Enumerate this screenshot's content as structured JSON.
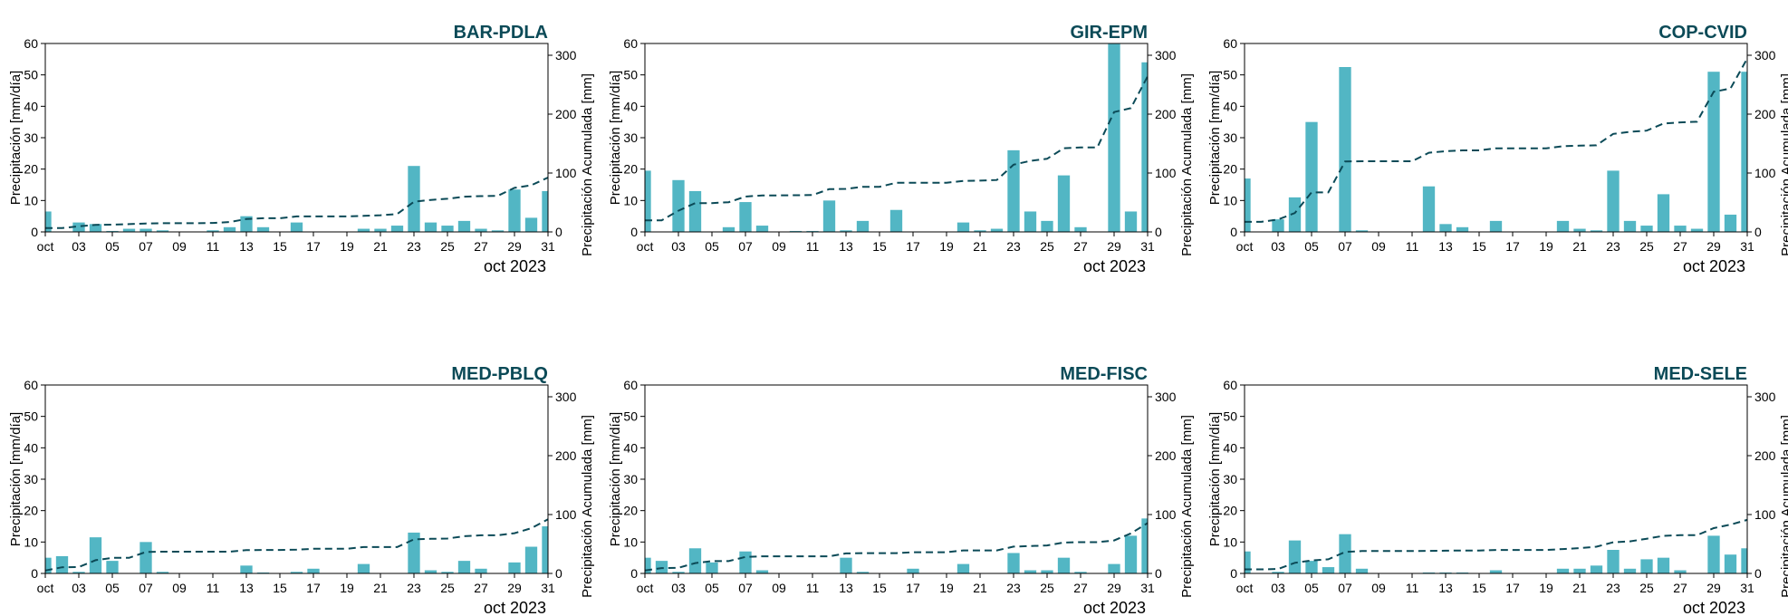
{
  "colors": {
    "bar": "#52b6c4",
    "cumulative_line": "#0b4a57",
    "title": "#0b4a57",
    "axis": "#000000"
  },
  "chart_data": [
    {
      "type": "bar",
      "title": "BAR-PDLA",
      "ylabel": "Precipitación [mm/día]",
      "y2label": "Precipitación Acumulada [mm]",
      "date_label": "oct 2023",
      "xticks": [
        "oct",
        "03",
        "05",
        "07",
        "09",
        "11",
        "13",
        "15",
        "17",
        "19",
        "21",
        "23",
        "25",
        "27",
        "29",
        "31"
      ],
      "ylim": [
        0,
        60
      ],
      "y2lim": [
        0,
        320
      ],
      "yticks": [
        0,
        10,
        20,
        30,
        40,
        50,
        60
      ],
      "y2ticks": [
        0,
        100,
        200,
        300
      ],
      "days": [
        1,
        2,
        3,
        4,
        5,
        6,
        7,
        8,
        9,
        10,
        11,
        12,
        13,
        14,
        15,
        16,
        17,
        18,
        19,
        20,
        21,
        22,
        23,
        24,
        25,
        26,
        27,
        28,
        29,
        30,
        31
      ],
      "series": [
        {
          "name": "",
          "kind": "bar",
          "values": [
            6.5,
            0,
            3,
            2.5,
            0.3,
            1,
            1,
            0.5,
            0,
            0,
            0.5,
            1.5,
            5,
            1.5,
            0,
            3,
            0,
            0,
            0,
            1,
            1,
            2,
            21,
            3,
            2,
            3.5,
            1,
            0.5,
            13.5,
            4.5,
            13
          ]
        },
        {
          "name": "",
          "kind": "cumulative",
          "axis": "right",
          "values": [
            6.5,
            6.5,
            9.5,
            12,
            12.3,
            13.3,
            14.3,
            14.8,
            14.8,
            14.8,
            15.3,
            16.8,
            21.8,
            23.3,
            23.3,
            26.3,
            26.3,
            26.3,
            26.3,
            27.3,
            28.3,
            30.3,
            51.3,
            54.3,
            56.3,
            59.8,
            60.8,
            61.3,
            74.8,
            79.3,
            92.3
          ]
        }
      ]
    },
    {
      "type": "bar",
      "title": "GIR-EPM",
      "ylabel": "Precipitación [mm/día]",
      "y2label": "Precipitación Acumulada [mm]",
      "date_label": "oct 2023",
      "xticks": [
        "oct",
        "03",
        "05",
        "07",
        "09",
        "11",
        "13",
        "15",
        "17",
        "19",
        "21",
        "23",
        "25",
        "27",
        "29",
        "31"
      ],
      "ylim": [
        0,
        60
      ],
      "y2lim": [
        0,
        320
      ],
      "yticks": [
        0,
        10,
        20,
        30,
        40,
        50,
        60
      ],
      "y2ticks": [
        0,
        100,
        200,
        300
      ],
      "days": [
        1,
        2,
        3,
        4,
        5,
        6,
        7,
        8,
        9,
        10,
        11,
        12,
        13,
        14,
        15,
        16,
        17,
        18,
        19,
        20,
        21,
        22,
        23,
        24,
        25,
        26,
        27,
        28,
        29,
        30,
        31
      ],
      "series": [
        {
          "name": "",
          "kind": "bar",
          "values": [
            19.5,
            0,
            16.5,
            13,
            0,
            1.5,
            9.5,
            2,
            0,
            0.3,
            0.3,
            10,
            0.5,
            3.5,
            0,
            7,
            0,
            0,
            0,
            3,
            0.5,
            1,
            26,
            6.5,
            3.5,
            18,
            1.5,
            0,
            60,
            6.5,
            54
          ]
        },
        {
          "name": "",
          "kind": "cumulative",
          "axis": "right",
          "values": [
            19.5,
            19.5,
            36,
            49,
            49,
            50.5,
            60,
            62,
            62,
            62.3,
            62.6,
            72.6,
            73.1,
            76.6,
            76.6,
            83.6,
            83.6,
            83.6,
            83.6,
            86.6,
            87.1,
            88.1,
            114.1,
            120.6,
            124.1,
            142.1,
            143.6,
            143.6,
            203.6,
            210.1,
            264.1
          ]
        }
      ]
    },
    {
      "type": "bar",
      "title": "COP-CVID",
      "ylabel": "Precipitación [mm/día]",
      "y2label": "Precipitación Acumulada [mm]",
      "date_label": "oct 2023",
      "xticks": [
        "oct",
        "03",
        "05",
        "07",
        "09",
        "11",
        "13",
        "15",
        "17",
        "19",
        "21",
        "23",
        "25",
        "27",
        "29",
        "31"
      ],
      "ylim": [
        0,
        60
      ],
      "y2lim": [
        0,
        320
      ],
      "yticks": [
        0,
        10,
        20,
        30,
        40,
        50,
        60
      ],
      "y2ticks": [
        0,
        100,
        200,
        300
      ],
      "days": [
        1,
        2,
        3,
        4,
        5,
        6,
        7,
        8,
        9,
        10,
        11,
        12,
        13,
        14,
        15,
        16,
        17,
        18,
        19,
        20,
        21,
        22,
        23,
        24,
        25,
        26,
        27,
        28,
        29,
        30,
        31
      ],
      "series": [
        {
          "name": "",
          "kind": "bar",
          "values": [
            17,
            0,
            4,
            11,
            35,
            0,
            52.5,
            0.5,
            0,
            0,
            0,
            14.5,
            2.5,
            1.5,
            0,
            3.5,
            0,
            0,
            0,
            3.5,
            1,
            0.5,
            19.5,
            3.5,
            2,
            12,
            2,
            1,
            51,
            5.5,
            51
          ]
        },
        {
          "name": "",
          "kind": "cumulative",
          "axis": "right",
          "values": [
            17,
            17,
            21,
            32,
            67,
            67,
            119.5,
            120,
            120,
            120,
            120,
            134.5,
            137,
            138.5,
            138.5,
            142,
            142,
            142,
            142,
            145.5,
            146.5,
            147,
            166.5,
            170,
            172,
            184,
            186,
            187,
            238,
            243.5,
            294.5
          ]
        }
      ]
    },
    {
      "type": "bar",
      "title": "MED-PBLQ",
      "ylabel": "Precipitación [mm/día]",
      "y2label": "Precipitación Acumulada [mm]",
      "date_label": "oct 2023",
      "xticks": [
        "oct",
        "03",
        "05",
        "07",
        "09",
        "11",
        "13",
        "15",
        "17",
        "19",
        "21",
        "23",
        "25",
        "27",
        "29",
        "31"
      ],
      "ylim": [
        0,
        60
      ],
      "y2lim": [
        0,
        320
      ],
      "yticks": [
        0,
        10,
        20,
        30,
        40,
        50,
        60
      ],
      "y2ticks": [
        0,
        100,
        200,
        300
      ],
      "days": [
        1,
        2,
        3,
        4,
        5,
        6,
        7,
        8,
        9,
        10,
        11,
        12,
        13,
        14,
        15,
        16,
        17,
        18,
        19,
        20,
        21,
        22,
        23,
        24,
        25,
        26,
        27,
        28,
        29,
        30,
        31
      ],
      "series": [
        {
          "name": "",
          "kind": "bar",
          "values": [
            5,
            5.5,
            0.5,
            11.5,
            4,
            0,
            10,
            0.5,
            0,
            0,
            0,
            0,
            2.5,
            0.3,
            0,
            0.5,
            1.5,
            0,
            0,
            3,
            0,
            0,
            13,
            1,
            0.5,
            4,
            1.5,
            0,
            3.5,
            8.5,
            15
          ]
        },
        {
          "name": "",
          "kind": "cumulative",
          "axis": "right",
          "values": [
            5,
            10.5,
            11,
            22.5,
            26.5,
            26.5,
            36.5,
            37,
            37,
            37,
            37,
            37,
            39.5,
            39.8,
            39.8,
            40.3,
            41.8,
            41.8,
            41.8,
            44.8,
            44.8,
            44.8,
            57.8,
            58.8,
            59.3,
            63.3,
            64.8,
            64.8,
            68.3,
            76.8,
            91.8
          ]
        }
      ]
    },
    {
      "type": "bar",
      "title": "MED-FISC",
      "ylabel": "Precipitación [mm/día]",
      "y2label": "Precipitación Acumulada [mm]",
      "date_label": "oct 2023",
      "xticks": [
        "oct",
        "03",
        "05",
        "07",
        "09",
        "11",
        "13",
        "15",
        "17",
        "19",
        "21",
        "23",
        "25",
        "27",
        "29",
        "31"
      ],
      "ylim": [
        0,
        60
      ],
      "y2lim": [
        0,
        320
      ],
      "yticks": [
        0,
        10,
        20,
        30,
        40,
        50,
        60
      ],
      "y2ticks": [
        0,
        100,
        200,
        300
      ],
      "days": [
        1,
        2,
        3,
        4,
        5,
        6,
        7,
        8,
        9,
        10,
        11,
        12,
        13,
        14,
        15,
        16,
        17,
        18,
        19,
        20,
        21,
        22,
        23,
        24,
        25,
        26,
        27,
        28,
        29,
        30,
        31
      ],
      "series": [
        {
          "name": "",
          "kind": "bar",
          "values": [
            5,
            4,
            0.5,
            8,
            3.5,
            0,
            7,
            1,
            0,
            0,
            0,
            0,
            5,
            0.5,
            0,
            0,
            1.5,
            0,
            0,
            3,
            0,
            0,
            6.5,
            1,
            1,
            5,
            0.5,
            0,
            3,
            12,
            17.5
          ]
        },
        {
          "name": "",
          "kind": "cumulative",
          "axis": "right",
          "values": [
            5,
            9,
            9.5,
            17.5,
            21,
            21,
            28,
            29,
            29,
            29,
            29,
            29,
            34,
            34.5,
            34.5,
            34.5,
            36,
            36,
            36,
            39,
            39,
            39,
            45.5,
            46.5,
            47.5,
            52.5,
            53,
            53,
            56,
            68,
            85.5
          ]
        }
      ]
    },
    {
      "type": "bar",
      "title": "MED-SELE",
      "ylabel": "Precipitación [mm/día]",
      "y2label": "Precipitación Acumulada [mm]",
      "date_label": "oct 2023",
      "xticks": [
        "oct",
        "03",
        "05",
        "07",
        "09",
        "11",
        "13",
        "15",
        "17",
        "19",
        "21",
        "23",
        "25",
        "27",
        "29",
        "31"
      ],
      "ylim": [
        0,
        60
      ],
      "y2lim": [
        0,
        320
      ],
      "yticks": [
        0,
        10,
        20,
        30,
        40,
        50,
        60
      ],
      "y2ticks": [
        0,
        100,
        200,
        300
      ],
      "days": [
        1,
        2,
        3,
        4,
        5,
        6,
        7,
        8,
        9,
        10,
        11,
        12,
        13,
        14,
        15,
        16,
        17,
        18,
        19,
        20,
        21,
        22,
        23,
        24,
        25,
        26,
        27,
        28,
        29,
        30,
        31
      ],
      "series": [
        {
          "name": "",
          "kind": "bar",
          "values": [
            7,
            0,
            0.5,
            10.5,
            4,
            2,
            12.5,
            1.5,
            0,
            0,
            0,
            0.3,
            0.3,
            0.3,
            0,
            1,
            0,
            0,
            0,
            1.5,
            1.5,
            2.5,
            7.5,
            1.5,
            4.5,
            5,
            1,
            0,
            12,
            6,
            8
          ]
        },
        {
          "name": "",
          "kind": "cumulative",
          "axis": "right",
          "values": [
            7,
            7,
            7.5,
            18,
            22,
            24,
            36.5,
            38,
            38,
            38,
            38,
            38.3,
            38.6,
            38.9,
            38.9,
            39.9,
            39.9,
            39.9,
            39.9,
            41.4,
            42.9,
            45.4,
            52.9,
            54.4,
            58.9,
            63.9,
            64.9,
            64.9,
            76.9,
            82.9,
            90.9
          ]
        }
      ]
    }
  ]
}
